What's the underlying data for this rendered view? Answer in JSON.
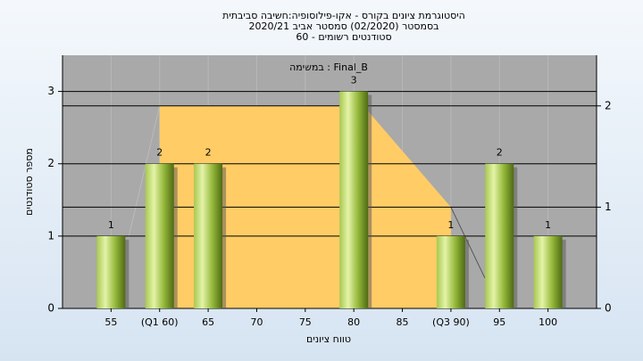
{
  "chart_data": {
    "type": "bar",
    "title": [
      "היסטוגרמת ציונים בקורס - אקו-פילוסופיה:חשיבה סביבתית",
      "בסמסטר  (02/2020)  סמסטר אביב 2020/21",
      "סטודנטים רשומים - 60"
    ],
    "subtitle": "במשימה : Final_B",
    "x_label": "טווח ציונים",
    "y_label": "מספר סטודנטים",
    "categories": [
      "55",
      "(Q1 60)",
      "65",
      "70",
      "75",
      "80",
      "85",
      "(Q3 90)",
      "95",
      "100"
    ],
    "values": [
      1,
      2,
      2,
      0,
      0,
      3,
      0,
      1,
      2,
      1
    ],
    "value_labels": [
      "1",
      "2",
      "2",
      null,
      null,
      "3",
      null,
      "1",
      "2",
      "1"
    ],
    "color": "#8fb33a",
    "xlim": [
      50,
      105
    ],
    "ylim": [
      0,
      3.5
    ],
    "yticks": [
      0,
      1,
      2,
      3
    ],
    "y2lim": [
      0,
      2.5
    ],
    "y2ticks": [
      0,
      1,
      2
    ],
    "grid": true,
    "overlays": [
      {
        "type": "area",
        "axis": "y2",
        "x": [
          60,
          81,
          90
        ],
        "values": [
          2,
          2,
          1
        ],
        "color": "#ffcc66"
      },
      {
        "type": "line",
        "axis": "y2",
        "x": [
          56.8,
          60
        ],
        "values": [
          0.7,
          2
        ],
        "color": "#bbbbbb"
      },
      {
        "type": "line",
        "axis": "y2",
        "x": [
          90,
          93.5
        ],
        "values": [
          1,
          0.3
        ],
        "color": "#555555"
      }
    ]
  }
}
